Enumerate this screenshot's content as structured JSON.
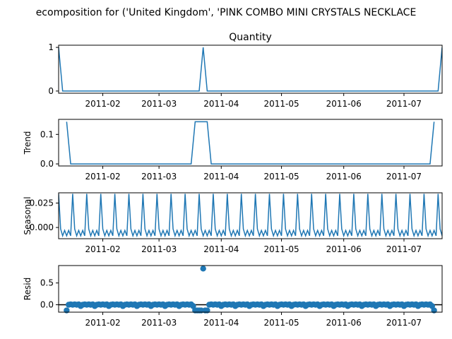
{
  "figure": {
    "suptitle": "ecomposition for ('United Kingdom', 'PINK COMBO MINI CRYSTALS NECKLACE"
  },
  "chart_data": [
    {
      "panel": "observed",
      "type": "line",
      "title": "Quantity",
      "ylabel": "",
      "x_start": "2011-01-10",
      "x_end": "2011-07-20",
      "x_ticks": [
        "2011-02",
        "2011-03",
        "2011-04",
        "2011-05",
        "2011-06",
        "2011-07"
      ],
      "y_ticks": [
        "0",
        "1"
      ],
      "ylim": [
        -0.05,
        1.05
      ],
      "series": [
        {
          "values_by_date": [
            [
              "2011-01-10",
              1
            ],
            [
              "2011-01-12",
              0
            ],
            [
              "2011-03-21",
              0
            ],
            [
              "2011-03-23",
              1
            ],
            [
              "2011-03-25",
              0
            ],
            [
              "2011-07-18",
              0
            ],
            [
              "2011-07-20",
              1
            ]
          ],
          "color": "#1f77b4"
        }
      ]
    },
    {
      "panel": "trend",
      "type": "line",
      "title": "",
      "ylabel": "Trend",
      "x_start": "2011-01-10",
      "x_end": "2011-07-20",
      "x_ticks": [
        "2011-02",
        "2011-03",
        "2011-04",
        "2011-05",
        "2011-06",
        "2011-07"
      ],
      "y_ticks": [
        "0.0",
        "0.1"
      ],
      "ylim": [
        -0.007,
        0.151
      ],
      "series": [
        {
          "values_by_date": [
            [
              "2011-01-14",
              0.1429
            ],
            [
              "2011-01-16",
              0
            ],
            [
              "2011-03-17",
              0
            ],
            [
              "2011-03-19",
              0.1429
            ],
            [
              "2011-03-25",
              0.1429
            ],
            [
              "2011-03-27",
              0
            ],
            [
              "2011-07-14",
              0
            ],
            [
              "2011-07-16",
              0.1429
            ]
          ],
          "color": "#1f77b4"
        }
      ]
    },
    {
      "panel": "seasonal",
      "type": "line",
      "title": "",
      "ylabel": "Seasonal",
      "x_start": "2011-01-10",
      "x_end": "2011-07-20",
      "x_ticks": [
        "2011-02",
        "2011-03",
        "2011-04",
        "2011-05",
        "2011-06",
        "2011-07"
      ],
      "y_ticks": [
        "0.000",
        "0.025"
      ],
      "ylim": [
        -0.0115,
        0.0355
      ],
      "period_days": 7,
      "weekly_pattern": [
        0.0345,
        -0.0015,
        -0.0085,
        -0.003,
        -0.0085,
        -0.003,
        -0.0085
      ],
      "series": [
        {
          "color": "#1f77b4"
        }
      ]
    },
    {
      "panel": "resid",
      "type": "scatter",
      "title": "",
      "ylabel": "Resid",
      "x_start": "2011-01-10",
      "x_end": "2011-07-20",
      "x_ticks": [
        "2011-02",
        "2011-03",
        "2011-04",
        "2011-05",
        "2011-06",
        "2011-07"
      ],
      "y_ticks": [
        "0.0",
        "0.5"
      ],
      "ylim": [
        -0.17,
        0.9
      ],
      "zero_line": true,
      "residual_start": "2011-01-14",
      "residual_end": "2011-07-16",
      "baseline_pattern": [
        -0.03,
        0.0,
        0.01,
        0.0,
        0.01,
        0.0,
        0.01
      ],
      "special_points": [
        [
          "2011-01-14",
          -0.13
        ],
        [
          "2011-03-19",
          -0.13
        ],
        [
          "2011-03-20",
          -0.13
        ],
        [
          "2011-03-21",
          -0.13
        ],
        [
          "2011-03-22",
          -0.13
        ],
        [
          "2011-03-23",
          0.83
        ],
        [
          "2011-03-24",
          -0.13
        ],
        [
          "2011-03-25",
          -0.13
        ],
        [
          "2011-07-16",
          -0.13
        ]
      ],
      "series": [
        {
          "color": "#1f77b4"
        }
      ]
    }
  ]
}
